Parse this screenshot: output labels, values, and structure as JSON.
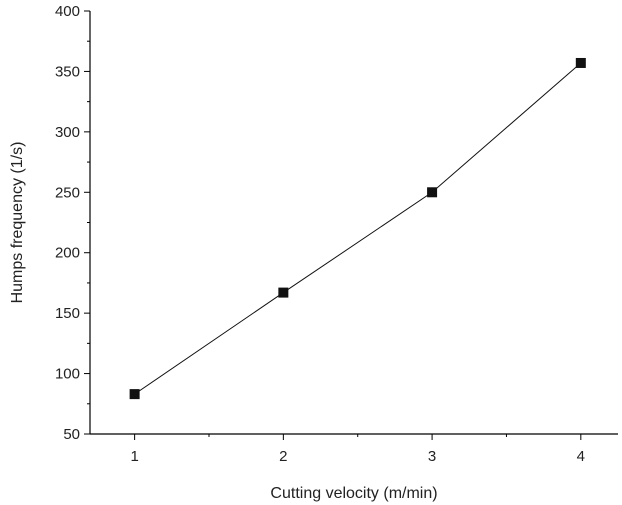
{
  "chart_data": {
    "type": "line",
    "title": "",
    "xlabel": "Cutting velocity (m/min)",
    "ylabel": "Humps frequency (1/s)",
    "xlim": [
      0.7,
      4.25
    ],
    "ylim": [
      50,
      400
    ],
    "x_ticks": [
      1,
      2,
      3,
      4
    ],
    "y_ticks": [
      50,
      100,
      150,
      200,
      250,
      300,
      350,
      400
    ],
    "x_tick_labels": [
      "1",
      "2",
      "3",
      "4"
    ],
    "y_tick_labels": [
      "50",
      "100",
      "150",
      "200",
      "250",
      "300",
      "350",
      "400"
    ],
    "grid": false,
    "legend": "none",
    "marker": "square",
    "color": "#111111",
    "series": [
      {
        "x": [
          1,
          2,
          3,
          4
        ],
        "values": [
          83,
          167,
          250,
          357
        ]
      }
    ]
  }
}
